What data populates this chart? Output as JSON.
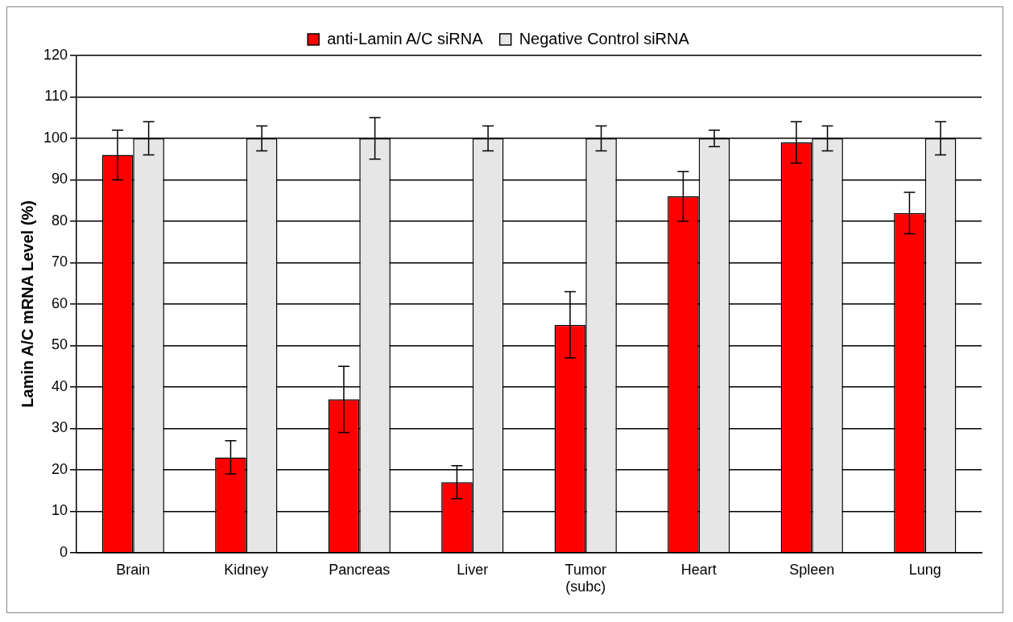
{
  "chart_data": {
    "type": "bar",
    "ylabel": "Lamin A/C mRNA Level (%)",
    "categories": [
      "Brain",
      "Kidney",
      "Pancreas",
      "Liver",
      "Tumor (subc)",
      "Heart",
      "Spleen",
      "Lung"
    ],
    "series": [
      {
        "name": "anti-Lamin A/C siRNA",
        "color": "#ff0000",
        "values": [
          96,
          23,
          37,
          17,
          55,
          86,
          99,
          82
        ],
        "errors": [
          6,
          4,
          8,
          4,
          8,
          6,
          5,
          5
        ]
      },
      {
        "name": "Negative Control siRNA",
        "color": "#e6e6e6",
        "values": [
          100,
          100,
          100,
          100,
          100,
          100,
          100,
          100
        ],
        "errors": [
          4,
          3,
          5,
          3,
          3,
          2,
          3,
          4
        ]
      }
    ],
    "ylim": [
      0,
      120
    ],
    "yticks": [
      0,
      10,
      20,
      30,
      40,
      50,
      60,
      70,
      80,
      90,
      100,
      110,
      120
    ],
    "grid": "y",
    "legend": "top"
  }
}
